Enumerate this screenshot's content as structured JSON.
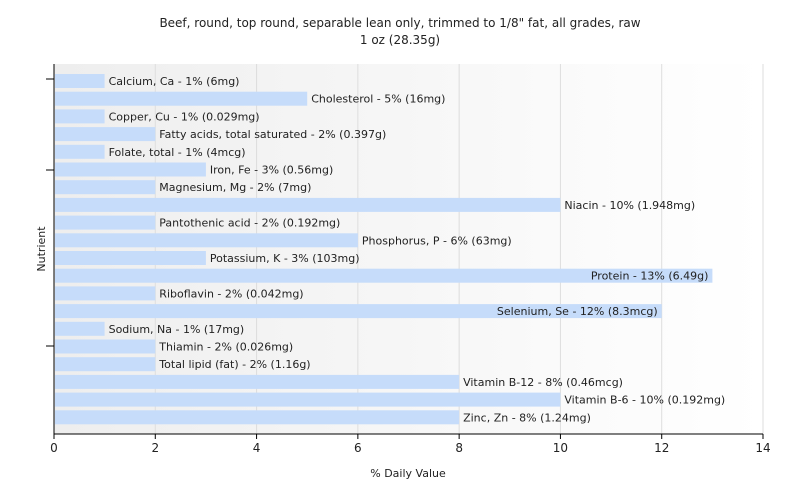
{
  "chart_data": {
    "type": "bar",
    "orientation": "horizontal",
    "title": "Beef, round, top round, separable lean only, trimmed to 1/8\" fat, all grades, raw",
    "subtitle": "1 oz (28.35g)",
    "xlabel": "% Daily Value",
    "ylabel": "Nutrient",
    "xlim": [
      0,
      14
    ],
    "xticks": [
      0,
      2,
      4,
      6,
      8,
      10,
      12,
      14
    ],
    "grid": true,
    "bar_color": "#c6dcfa",
    "categories": [
      "Calcium, Ca",
      "Cholesterol",
      "Copper, Cu",
      "Fatty acids, total saturated",
      "Folate, total",
      "Iron, Fe",
      "Magnesium, Mg",
      "Niacin",
      "Pantothenic acid",
      "Phosphorus, P",
      "Potassium, K",
      "Protein",
      "Riboflavin",
      "Selenium, Se",
      "Sodium, Na",
      "Thiamin",
      "Total lipid (fat)",
      "Vitamin B-12",
      "Vitamin B-6",
      "Zinc, Zn"
    ],
    "values": [
      1,
      5,
      1,
      2,
      1,
      3,
      2,
      10,
      2,
      6,
      3,
      13,
      2,
      12,
      1,
      2,
      2,
      8,
      10,
      8
    ],
    "labels": [
      "Calcium, Ca - 1% (6mg)",
      "Cholesterol - 5% (16mg)",
      "Copper, Cu - 1% (0.029mg)",
      "Fatty acids, total saturated - 2% (0.397g)",
      "Folate, total - 1% (4mcg)",
      "Iron, Fe - 3% (0.56mg)",
      "Magnesium, Mg - 2% (7mg)",
      "Niacin - 10% (1.948mg)",
      "Pantothenic acid - 2% (0.192mg)",
      "Phosphorus, P - 6% (63mg)",
      "Potassium, K - 3% (103mg)",
      "Protein - 13% (6.49g)",
      "Riboflavin - 2% (0.042mg)",
      "Selenium, Se - 12% (8.3mcg)",
      "Sodium, Na - 1% (17mg)",
      "Thiamin - 2% (0.026mg)",
      "Total lipid (fat) - 2% (1.16g)",
      "Vitamin B-12 - 8% (0.46mcg)",
      "Vitamin B-6 - 10% (0.192mg)",
      "Zinc, Zn - 8% (1.24mg)"
    ]
  }
}
